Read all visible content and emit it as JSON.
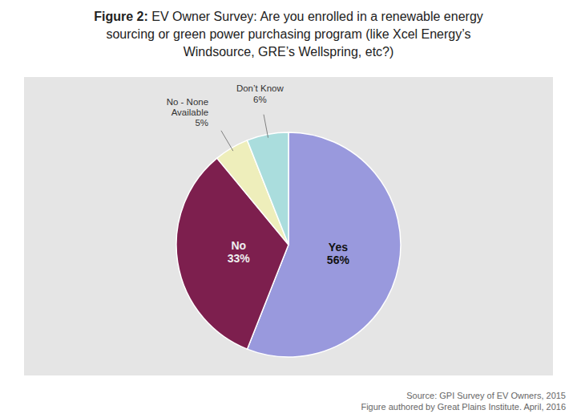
{
  "chart_data": {
    "type": "pie",
    "title": "Figure 2: EV Owner Survey: Are you enrolled in a renewable energy\nsourcing or green power purchasing program (like Xcel Energy’s\nWindsource, GRE’s Wellspring, etc?)",
    "categories": [
      "Yes",
      "No",
      "No - None\nAvailable",
      "Don’t Know"
    ],
    "values": [
      56,
      33,
      5,
      6
    ],
    "value_labels": [
      "56%",
      "33%",
      "5%",
      "6%"
    ],
    "colors": [
      "#9999dd",
      "#7d1f4e",
      "#eeeebb",
      "#aadddd"
    ],
    "data_labels": true,
    "annotations": [
      {
        "text": "Source: GPI Survey of EV Owners, 2015\nFigure authored by Great Plains Institute. April, 2016"
      }
    ]
  }
}
